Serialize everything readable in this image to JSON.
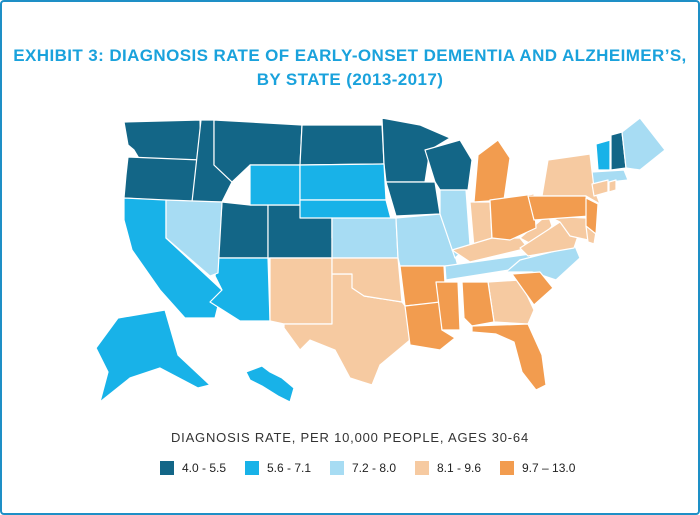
{
  "title": {
    "line1": "EXHIBIT 3: DIAGNOSIS RATE OF EARLY-ONSET DEMENTIA AND ALZHEIMER’S,",
    "line2": "BY STATE (2013-2017)"
  },
  "legend": {
    "title": "DIAGNOSIS RATE, PER 10,000 PEOPLE, AGES 30-64",
    "items": [
      {
        "label": "4.0 - 5.5",
        "color": "#136687"
      },
      {
        "label": "5.6 - 7.1",
        "color": "#18b2e8"
      },
      {
        "label": "7.2 - 8.0",
        "color": "#a7dcf3"
      },
      {
        "label": "8.1 - 9.6",
        "color": "#f6caa1"
      },
      {
        "label": "9.7 – 13.0",
        "color": "#f29c4f"
      }
    ]
  },
  "map": {
    "border_color": "#ffffff",
    "states": [
      {
        "code": "WA",
        "bin": 0
      },
      {
        "code": "OR",
        "bin": 0
      },
      {
        "code": "ID",
        "bin": 0
      },
      {
        "code": "MT",
        "bin": 0
      },
      {
        "code": "ND",
        "bin": 0
      },
      {
        "code": "MN",
        "bin": 0
      },
      {
        "code": "WI",
        "bin": 0
      },
      {
        "code": "IA",
        "bin": 0
      },
      {
        "code": "UT",
        "bin": 0
      },
      {
        "code": "CO",
        "bin": 0
      },
      {
        "code": "NH",
        "bin": 0
      },
      {
        "code": "CA",
        "bin": 1
      },
      {
        "code": "AZ",
        "bin": 1
      },
      {
        "code": "WY",
        "bin": 1
      },
      {
        "code": "SD",
        "bin": 1
      },
      {
        "code": "NE",
        "bin": 1
      },
      {
        "code": "AK",
        "bin": 1
      },
      {
        "code": "HI",
        "bin": 1
      },
      {
        "code": "VT",
        "bin": 1
      },
      {
        "code": "NV",
        "bin": 2
      },
      {
        "code": "KS",
        "bin": 2
      },
      {
        "code": "MO",
        "bin": 2
      },
      {
        "code": "IL",
        "bin": 2
      },
      {
        "code": "TN",
        "bin": 2
      },
      {
        "code": "NC",
        "bin": 2
      },
      {
        "code": "ME",
        "bin": 2
      },
      {
        "code": "MA",
        "bin": 2
      },
      {
        "code": "NM",
        "bin": 3
      },
      {
        "code": "TX",
        "bin": 3
      },
      {
        "code": "OK",
        "bin": 3
      },
      {
        "code": "IN",
        "bin": 3
      },
      {
        "code": "KY",
        "bin": 3
      },
      {
        "code": "WV",
        "bin": 3
      },
      {
        "code": "VA",
        "bin": 3
      },
      {
        "code": "GA",
        "bin": 3
      },
      {
        "code": "NY",
        "bin": 3
      },
      {
        "code": "MD",
        "bin": 3
      },
      {
        "code": "DE",
        "bin": 3
      },
      {
        "code": "CT",
        "bin": 3
      },
      {
        "code": "RI",
        "bin": 3
      },
      {
        "code": "AR",
        "bin": 4
      },
      {
        "code": "LA",
        "bin": 4
      },
      {
        "code": "MS",
        "bin": 4
      },
      {
        "code": "AL",
        "bin": 4
      },
      {
        "code": "FL",
        "bin": 4
      },
      {
        "code": "SC",
        "bin": 4
      },
      {
        "code": "MI",
        "bin": 4
      },
      {
        "code": "OH",
        "bin": 4
      },
      {
        "code": "PA",
        "bin": 4
      },
      {
        "code": "NJ",
        "bin": 4
      }
    ]
  }
}
